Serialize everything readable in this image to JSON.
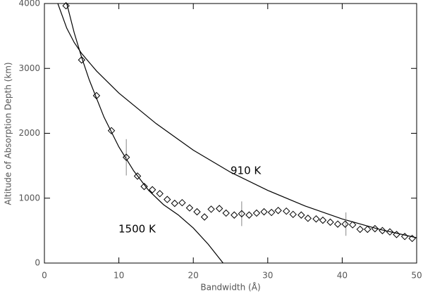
{
  "chart_data": {
    "type": "scatter",
    "xlabel": "Bandwidth (Å)",
    "ylabel": "Altitude of Absorption Depth (km)",
    "xlim": [
      0,
      50
    ],
    "xticks": [
      0,
      10,
      20,
      30,
      40,
      50
    ],
    "ylim": [
      0,
      4000
    ],
    "yticks": [
      0,
      1000,
      2000,
      3000,
      4000
    ],
    "color": "#000000",
    "x": [
      2.9,
      5.0,
      7.0,
      9.0,
      11.0,
      12.5,
      13.4,
      14.5,
      15.5,
      16.5,
      17.5,
      18.5,
      19.5,
      20.5,
      21.5,
      22.4,
      23.5,
      24.4,
      25.5,
      26.5,
      27.5,
      28.5,
      29.5,
      30.5,
      31.4,
      32.5,
      33.4,
      34.5,
      35.4,
      36.5,
      37.4,
      38.4,
      39.4,
      40.4,
      41.4,
      42.4,
      43.4,
      44.4,
      45.4,
      46.4,
      47.3,
      48.4,
      49.4
    ],
    "values": [
      3965,
      3130,
      2580,
      2040,
      1630,
      1340,
      1180,
      1130,
      1070,
      980,
      920,
      930,
      850,
      790,
      710,
      830,
      840,
      770,
      740,
      760,
      740,
      770,
      790,
      780,
      810,
      800,
      750,
      740,
      690,
      680,
      660,
      630,
      600,
      600,
      590,
      520,
      520,
      530,
      500,
      480,
      440,
      410,
      380
    ],
    "error_bars": {
      "x": [
        11.0,
        26.5,
        40.5
      ],
      "values": [
        1630,
        760,
        600
      ],
      "errors": [
        280,
        190,
        180
      ],
      "color": "#888888"
    },
    "curves": [
      {
        "label": "910 K",
        "x": [
          1.8,
          3,
          4,
          5,
          7,
          10,
          15,
          20,
          25,
          30,
          35,
          40,
          45,
          50
        ],
        "values": [
          4000,
          3620,
          3400,
          3230,
          2960,
          2620,
          2150,
          1740,
          1400,
          1120,
          880,
          680,
          520,
          390
        ]
      },
      {
        "label": "1500 K",
        "x": [
          3,
          4,
          5,
          6,
          8,
          10,
          12,
          14,
          16,
          18,
          20,
          22,
          24
        ],
        "values": [
          4000,
          3550,
          3170,
          2830,
          2250,
          1790,
          1420,
          1120,
          900,
          740,
          540,
          290,
          0
        ]
      }
    ]
  }
}
